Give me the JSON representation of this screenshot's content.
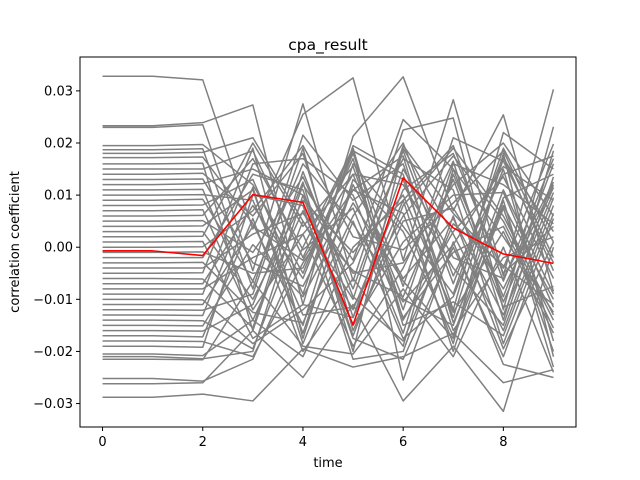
{
  "chart_data": {
    "type": "line",
    "title": "cpa_result",
    "xlabel": "time",
    "ylabel": "correlation coefficient",
    "xlim": [
      -0.45,
      9.45
    ],
    "ylim": [
      -0.0345,
      0.0365
    ],
    "xticks": [
      0,
      2,
      4,
      6,
      8
    ],
    "xtick_labels": [
      "0",
      "2",
      "4",
      "6",
      "8"
    ],
    "yticks": [
      -0.03,
      -0.02,
      -0.01,
      0.0,
      0.01,
      0.02,
      0.03
    ],
    "ytick_labels": [
      "−0.03",
      "−0.02",
      "−0.01",
      "0.00",
      "0.01",
      "0.02",
      "0.03"
    ],
    "grid": false,
    "x": [
      0,
      1,
      2,
      3,
      4,
      5,
      6,
      7,
      8,
      9
    ],
    "background_color": "#808080",
    "highlight_color": "#ff0000",
    "series": [
      {
        "values": [
          0.0328,
          0.0328,
          0.0321,
          0.0035,
          0.0255,
          0.0325,
          -0.0025,
          0.0283,
          -0.0055,
          0.0303
        ]
      },
      {
        "values": [
          0.0233,
          0.0233,
          0.0239,
          0.0273,
          -0.011,
          0.0213,
          0.0327,
          0.007,
          0.0254,
          -0.0085
        ]
      },
      {
        "values": [
          0.023,
          0.023,
          0.0235,
          -0.0045,
          0.0275,
          -0.0065,
          0.0225,
          0.0248,
          -0.012,
          0.0231
        ]
      },
      {
        "values": [
          0.0195,
          0.0195,
          0.0197,
          0.012,
          -0.005,
          0.018,
          -0.0075,
          0.021,
          0.0165,
          -0.003
        ]
      },
      {
        "values": [
          0.0187,
          0.0187,
          0.0189,
          -0.008,
          0.0215,
          0.009,
          0.016,
          -0.012,
          0.022,
          0.015
        ]
      },
      {
        "values": [
          0.018,
          0.018,
          0.0182,
          0.021,
          0.005,
          -0.01,
          0.0195,
          0.0065,
          -0.004,
          0.0198
        ]
      },
      {
        "values": [
          0.0172,
          0.0172,
          0.0173,
          0.0045,
          -0.015,
          0.016,
          0.004,
          -0.009,
          0.019,
          0.001
        ]
      },
      {
        "values": [
          0.016,
          0.016,
          0.0161,
          -0.016,
          0.012,
          -0.0025,
          0.0245,
          0.015,
          -0.0105,
          0.0115
        ]
      },
      {
        "values": [
          0.015,
          0.015,
          0.015,
          0.0185,
          -0.002,
          0.019,
          -0.014,
          0.003,
          0.0135,
          -0.006
        ]
      },
      {
        "values": [
          0.014,
          0.014,
          0.0142,
          0.006,
          0.018,
          -0.0135,
          0.009,
          0.0195,
          -0.0065,
          0.017
        ]
      },
      {
        "values": [
          0.013,
          0.013,
          0.0131,
          -0.003,
          -0.0075,
          0.011,
          0.0175,
          -0.0145,
          0.008,
          -0.01
        ]
      },
      {
        "values": [
          0.012,
          0.012,
          0.0122,
          0.015,
          0.01,
          -0.005,
          -0.003,
          0.012,
          0.02,
          0.006
        ]
      },
      {
        "values": [
          0.011,
          0.011,
          0.0111,
          -0.012,
          0.0025,
          0.014,
          0.012,
          -0.004,
          -0.015,
          0.0135
        ]
      },
      {
        "values": [
          0.01,
          0.01,
          0.0101,
          0.009,
          -0.013,
          -0.0115,
          0.006,
          0.0175,
          0.005,
          -0.014
        ]
      },
      {
        "values": [
          0.009,
          0.009,
          0.0092,
          -0.0065,
          0.016,
          0.0045,
          -0.0105,
          0.0005,
          0.0155,
          0.009
        ]
      },
      {
        "values": [
          0.008,
          0.008,
          0.0081,
          0.013,
          -0.009,
          0.0195,
          0.014,
          -0.016,
          -0.002,
          0.002
        ]
      },
      {
        "values": [
          0.007,
          0.007,
          0.0072,
          -0.014,
          0.007,
          -0.015,
          0.001,
          0.01,
          0.0105,
          -0.0115
        ]
      },
      {
        "values": [
          0.006,
          0.006,
          0.0061,
          0.017,
          -0.0005,
          0.0075,
          -0.0165,
          0.014,
          -0.0095,
          0.016
        ]
      },
      {
        "values": [
          0.005,
          0.005,
          0.0051,
          -0.001,
          0.0135,
          -0.008,
          0.0185,
          -0.007,
          0.0175,
          -0.0045
        ]
      },
      {
        "values": [
          0.004,
          0.004,
          0.0041,
          0.011,
          -0.0165,
          0.012,
          -0.006,
          0.0055,
          -0.013,
          0.0105
        ]
      },
      {
        "values": [
          0.003,
          0.003,
          0.003,
          -0.01,
          0.009,
          -0.001,
          0.01,
          -0.0125,
          0.003,
          -0.0165
        ]
      },
      {
        "values": [
          0.002,
          0.002,
          0.0021,
          0.02,
          0.004,
          0.0155,
          -0.012,
          0.016,
          0.012,
          0.0045
        ]
      },
      {
        "values": [
          0.001,
          0.001,
          0.0011,
          -0.0175,
          -0.011,
          -0.0135,
          0.015,
          -0.002,
          -0.006,
          0.0125
        ]
      },
      {
        "values": [
          0.0,
          0.0,
          0.0001,
          0.007,
          0.0195,
          0.002,
          -0.0005,
          0.0085,
          0.0185,
          -0.002
        ]
      },
      {
        "values": [
          -0.001,
          -0.001,
          -0.0009,
          -0.005,
          -0.004,
          0.017,
          -0.015,
          -0.0105,
          -0.017,
          0.008
        ]
      },
      {
        "values": [
          -0.002,
          -0.002,
          -0.002,
          0.014,
          0.011,
          -0.017,
          0.008,
          0.019,
          0.006,
          -0.013
        ]
      },
      {
        "values": [
          -0.003,
          -0.003,
          -0.0029,
          -0.0125,
          -0.0145,
          0.006,
          0.02,
          -0.0055,
          0.014,
          0.0175
        ]
      },
      {
        "values": [
          -0.004,
          -0.004,
          -0.004,
          0.0025,
          0.0065,
          -0.0045,
          -0.0095,
          0.013,
          -0.0115,
          -0.0075
        ]
      },
      {
        "values": [
          -0.005,
          -0.005,
          -0.0049,
          0.019,
          -0.0175,
          0.013,
          0.003,
          -0.017,
          0.0095,
          0.014
        ]
      },
      {
        "values": [
          -0.006,
          -0.006,
          -0.0061,
          -0.0155,
          0.0145,
          -0.0095,
          -0.018,
          0.0045,
          -0.0035,
          -0.011
        ]
      },
      {
        "values": [
          -0.007,
          -0.007,
          -0.007,
          0.008,
          -0.006,
          0.0185,
          0.013,
          -0.0135,
          0.017,
          0.003
        ]
      },
      {
        "values": [
          -0.008,
          -0.008,
          -0.008,
          -0.002,
          0.0025,
          -0.019,
          -0.004,
          0.0165,
          -0.014,
          0.0185
        ]
      },
      {
        "values": [
          -0.009,
          -0.009,
          -0.009,
          0.016,
          0.017,
          0.01,
          -0.0135,
          -0.001,
          0.004,
          -0.0155
        ]
      },
      {
        "values": [
          -0.01,
          -0.01,
          -0.0101,
          -0.0185,
          -0.012,
          -0.003,
          0.017,
          0.011,
          -0.0185,
          0.0065
        ]
      },
      {
        "values": [
          -0.011,
          -0.011,
          -0.011,
          0.004,
          -0.0025,
          0.014,
          -0.01,
          -0.015,
          0.011,
          -0.009
        ]
      },
      {
        "values": [
          -0.012,
          -0.012,
          -0.0121,
          -0.009,
          0.019,
          -0.016,
          0.005,
          0.0075,
          -0.008,
          0.012
        ]
      },
      {
        "values": [
          -0.013,
          -0.013,
          -0.0131,
          0.0115,
          -0.0185,
          0.005,
          -0.0175,
          -0.0095,
          0.015,
          -0.018
        ]
      },
      {
        "values": [
          -0.014,
          -0.014,
          -0.0141,
          -0.0195,
          0.005,
          -0.012,
          0.011,
          0.018,
          -0.005,
          0.004
        ]
      },
      {
        "values": [
          -0.015,
          -0.015,
          -0.0151,
          0.0005,
          -0.0095,
          0.0085,
          -0.0065,
          -0.0175,
          0.0075,
          -0.02
        ]
      },
      {
        "values": [
          -0.016,
          -0.016,
          -0.0161,
          -0.011,
          0.0125,
          -0.02,
          0.019,
          0.0025,
          -0.016,
          0.0095
        ]
      },
      {
        "values": [
          -0.017,
          -0.017,
          -0.0172,
          0.0055,
          -0.02,
          -0.006,
          -0.019,
          0.015,
          0.002,
          -0.0125
        ]
      },
      {
        "values": [
          -0.018,
          -0.018,
          -0.0181,
          -0.021,
          -0.003,
          0.011,
          0.0065,
          -0.0185,
          0.018,
          -0.021
        ]
      },
      {
        "values": [
          -0.019,
          -0.019,
          -0.0192,
          0.01,
          0.008,
          -0.0215,
          -0.02,
          0.006,
          -0.0195,
          0.001
        ]
      },
      {
        "values": [
          -0.0205,
          -0.0205,
          -0.0208,
          -0.014,
          -0.021,
          0.0,
          0.009,
          -0.02,
          0.009,
          -0.023
        ]
      },
      {
        "values": [
          -0.021,
          -0.021,
          -0.0214,
          -0.02,
          0.01,
          -0.0175,
          -0.0215,
          0.0,
          -0.021,
          0.0055
        ]
      },
      {
        "values": [
          -0.0215,
          -0.0215,
          -0.0216,
          -0.0065,
          -0.019,
          -0.0205,
          -0.008,
          -0.021,
          0.0,
          -0.024
        ]
      },
      {
        "values": [
          -0.0252,
          -0.0252,
          -0.0257,
          -0.0215,
          0.0,
          0.019,
          -0.0255,
          0.001,
          -0.0225,
          -0.025
        ]
      },
      {
        "values": [
          -0.0262,
          -0.0262,
          -0.026,
          -0.016,
          -0.025,
          -0.011,
          -0.0295,
          -0.019,
          -0.0315,
          0.0
        ]
      },
      {
        "values": [
          -0.0288,
          -0.0288,
          -0.0282,
          -0.0295,
          -0.0195,
          -0.023,
          -0.021,
          -0.0165,
          -0.026,
          -0.0235
        ]
      }
    ],
    "highlight": {
      "values": [
        -0.0007,
        -0.0007,
        -0.0016,
        0.0101,
        0.0086,
        -0.0149,
        0.0133,
        0.0037,
        -0.0013,
        -0.0031
      ]
    }
  }
}
